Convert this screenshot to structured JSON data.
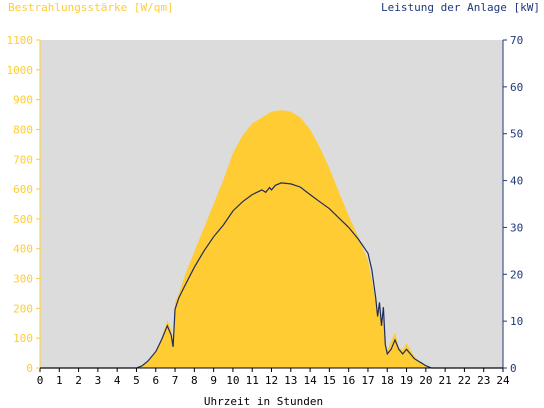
{
  "chart_data": {
    "type": "area",
    "title_left": "Bestrahlungsstärke [W/qm]",
    "title_right": "Leistung der Anlage [kW]",
    "xlabel": "Uhrzeit in Stunden",
    "x_ticks": [
      "0",
      "1",
      "2",
      "3",
      "4",
      "5",
      "6",
      "7",
      "8",
      "9",
      "10",
      "11",
      "12",
      "13",
      "14",
      "15",
      "16",
      "17",
      "18",
      "19",
      "20",
      "21",
      "22",
      "23",
      "24"
    ],
    "y_left_ticks": [
      "0",
      "100",
      "200",
      "300",
      "400",
      "500",
      "600",
      "700",
      "800",
      "900",
      "1000",
      "1100"
    ],
    "y_right_ticks": [
      "0",
      "10",
      "20",
      "30",
      "40",
      "50",
      "60",
      "70"
    ],
    "xlim": [
      0,
      24
    ],
    "ylim_left": [
      0,
      1100
    ],
    "ylim_right": [
      0,
      70
    ],
    "colors": {
      "irradiance": "#ffcc33",
      "power": "#1f2d5c",
      "left_axis": "#ffcc33",
      "right_axis": "#1f3a7a",
      "plot_bg": "#dcdcdc"
    },
    "series": [
      {
        "name": "Bestrahlungsstärke",
        "axis": "left",
        "x": [
          0,
          5.0,
          5.3,
          5.6,
          6.0,
          6.3,
          6.6,
          6.8,
          6.9,
          7.0,
          7.2,
          7.5,
          8.0,
          8.5,
          9.0,
          9.5,
          10.0,
          10.5,
          11.0,
          11.5,
          12.0,
          12.5,
          13.0,
          13.5,
          14.0,
          14.5,
          15.0,
          15.5,
          16.0,
          16.5,
          17.0,
          17.3,
          17.5,
          17.6,
          17.7,
          17.8,
          17.9,
          18.0,
          18.2,
          18.4,
          18.6,
          18.8,
          19.0,
          19.2,
          19.4,
          19.6,
          19.8,
          20.0,
          20.3,
          20.6,
          24
        ],
        "y": [
          0,
          0,
          8,
          25,
          55,
          100,
          160,
          130,
          95,
          220,
          250,
          310,
          390,
          470,
          550,
          630,
          720,
          780,
          820,
          840,
          860,
          865,
          860,
          840,
          800,
          740,
          670,
          590,
          510,
          440,
          360,
          260,
          180,
          230,
          120,
          180,
          70,
          60,
          90,
          120,
          70,
          60,
          85,
          60,
          40,
          25,
          15,
          8,
          0,
          0,
          0
        ]
      },
      {
        "name": "Leistung",
        "axis": "right",
        "x": [
          0,
          5.0,
          5.3,
          5.6,
          6.0,
          6.3,
          6.6,
          6.8,
          6.9,
          7.0,
          7.2,
          7.5,
          8.0,
          8.5,
          9.0,
          9.5,
          10.0,
          10.5,
          11.0,
          11.5,
          11.7,
          11.9,
          12.0,
          12.2,
          12.5,
          13.0,
          13.5,
          14.0,
          14.5,
          15.0,
          15.5,
          16.0,
          16.5,
          17.0,
          17.2,
          17.4,
          17.5,
          17.6,
          17.7,
          17.8,
          17.9,
          18.0,
          18.2,
          18.4,
          18.6,
          18.8,
          19.0,
          19.2,
          19.4,
          19.6,
          19.8,
          20.0,
          20.3,
          20.6,
          24
        ],
        "y": [
          0,
          0,
          0.5,
          1.5,
          3.5,
          6,
          9,
          7,
          4.5,
          12.5,
          15,
          17.5,
          21.5,
          25,
          28,
          30.5,
          33.5,
          35.5,
          37,
          38,
          37.5,
          38.5,
          38,
          39,
          39.5,
          39.3,
          38.6,
          37,
          35.5,
          34,
          32,
          30,
          27.5,
          24.5,
          21,
          15,
          11,
          14,
          9,
          13,
          5,
          3,
          4,
          6,
          4,
          3,
          4,
          3,
          2,
          1.5,
          1,
          0.5,
          0,
          0,
          0
        ]
      }
    ]
  }
}
